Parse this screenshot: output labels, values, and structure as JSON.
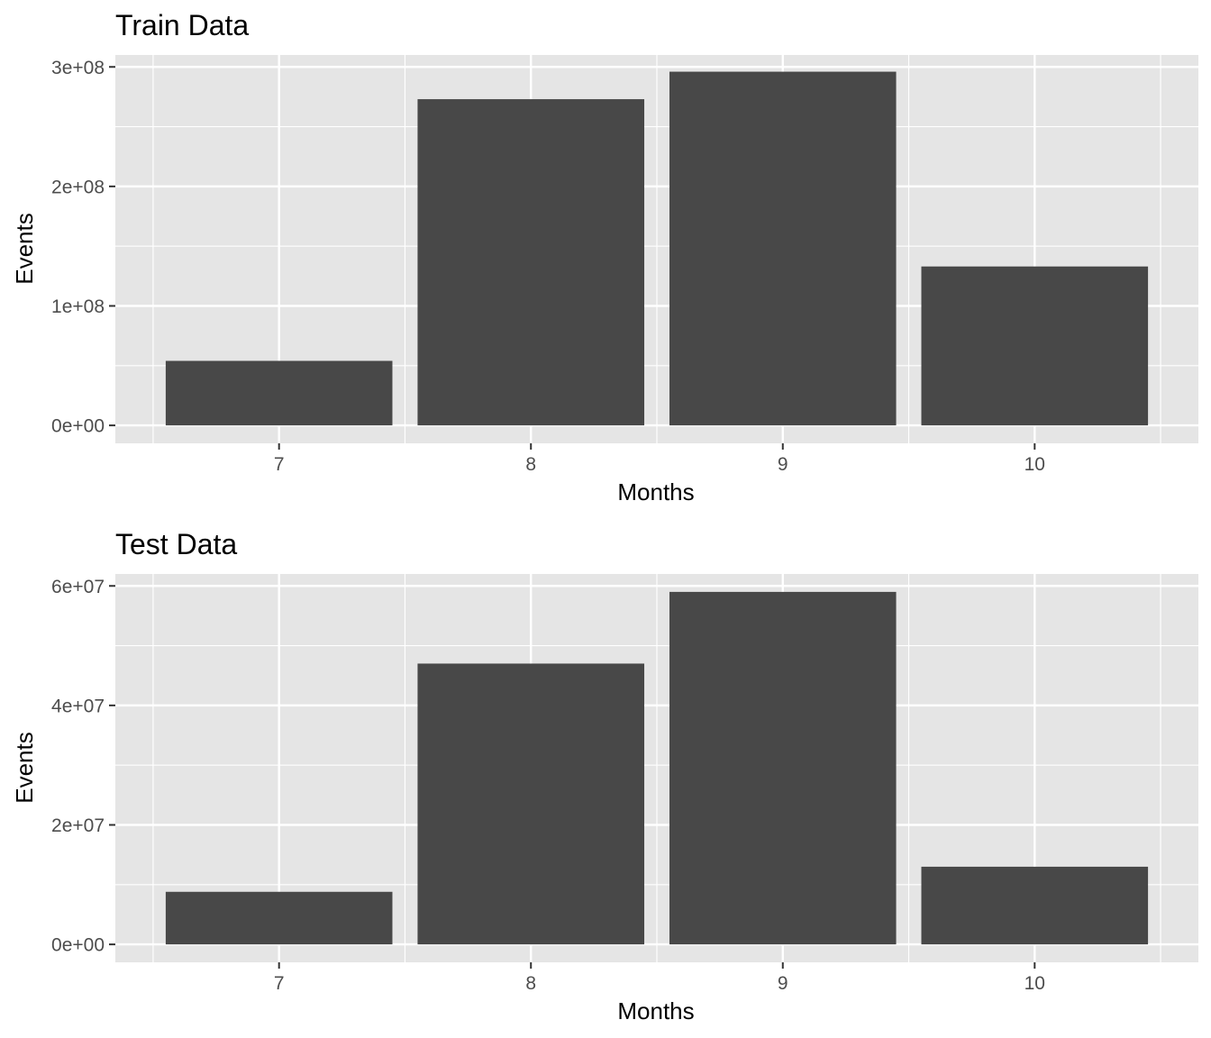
{
  "chart_data": [
    {
      "type": "bar",
      "title": "Train Data",
      "xlabel": "Months",
      "ylabel": "Events",
      "categories": [
        "7",
        "8",
        "9",
        "10"
      ],
      "values": [
        54000000,
        273000000,
        296000000,
        133000000
      ],
      "ylim": [
        -15000000,
        310000000
      ],
      "y_ticks": [
        0,
        100000000,
        200000000,
        300000000
      ],
      "y_tick_labels": [
        "0e+00",
        "1e+08",
        "2e+08",
        "3e+08"
      ],
      "bar_color": "#484848",
      "panel_background": "#e5e5e5",
      "grid": true
    },
    {
      "type": "bar",
      "title": "Test Data",
      "xlabel": "Months",
      "ylabel": "Events",
      "categories": [
        "7",
        "8",
        "9",
        "10"
      ],
      "values": [
        8800000,
        47000000,
        59000000,
        13000000
      ],
      "ylim": [
        -3000000,
        62000000
      ],
      "y_ticks": [
        0,
        20000000,
        40000000,
        60000000
      ],
      "y_tick_labels": [
        "0e+00",
        "2e+07",
        "4e+07",
        "6e+07"
      ],
      "bar_color": "#484848",
      "panel_background": "#e5e5e5",
      "grid": true
    }
  ]
}
